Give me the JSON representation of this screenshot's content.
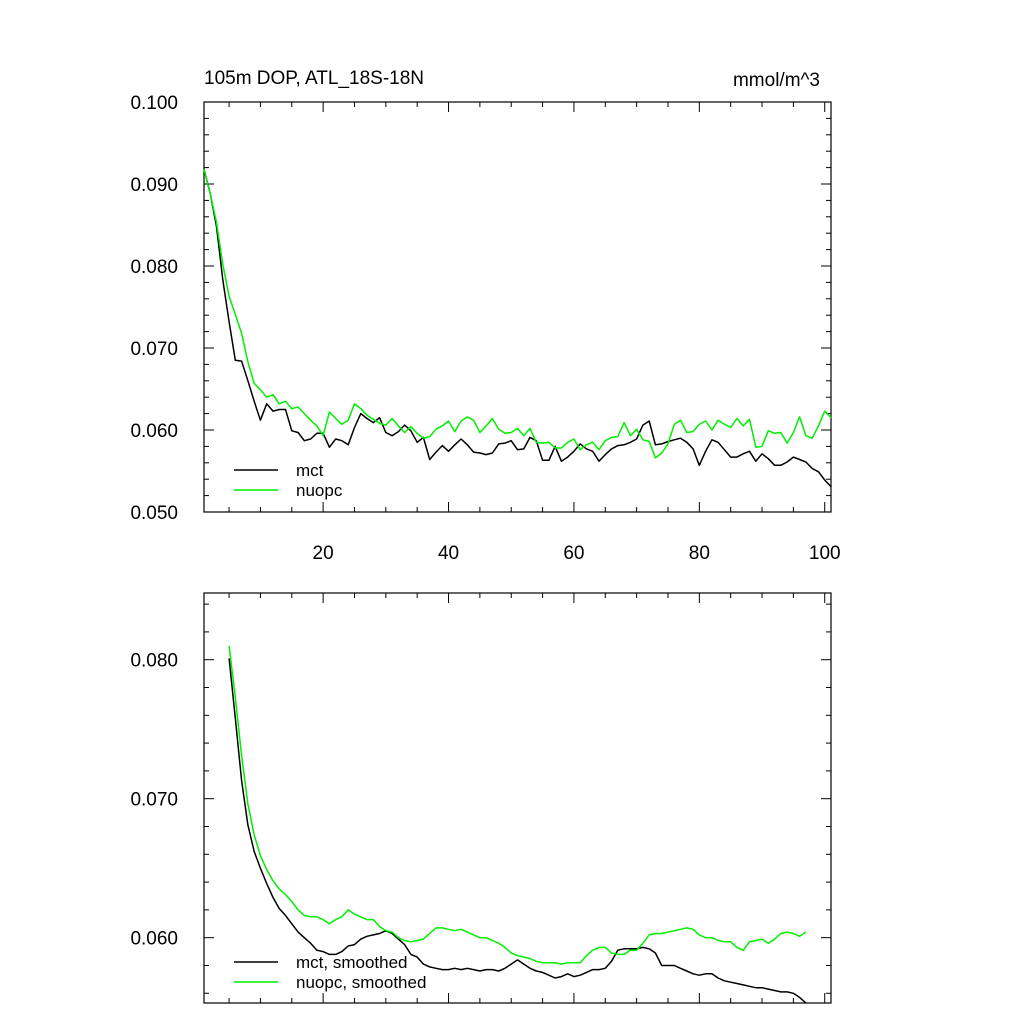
{
  "chart_data": [
    {
      "type": "line",
      "title": "105m DOP, ATL_18S-18N",
      "units": "mmol/m^3",
      "xlim": [
        1,
        101
      ],
      "ylim": [
        0.05,
        0.1
      ],
      "xticks": [
        20,
        40,
        60,
        80,
        100
      ],
      "xtick_labels": [
        "20",
        "40",
        "60",
        "80",
        "100"
      ],
      "yticks": [
        0.05,
        0.06,
        0.07,
        0.08,
        0.09,
        0.1
      ],
      "ytick_labels": [
        "0.050",
        "0.060",
        "0.070",
        "0.080",
        "0.090",
        "0.100"
      ],
      "legend_position": "bottom-left",
      "x": [
        1,
        2,
        3,
        4,
        5,
        6,
        7,
        8,
        9,
        10,
        11,
        12,
        13,
        14,
        15,
        16,
        17,
        18,
        19,
        20,
        21,
        22,
        23,
        24,
        25,
        26,
        27,
        28,
        29,
        30,
        31,
        32,
        33,
        34,
        35,
        36,
        37,
        38,
        39,
        40,
        41,
        42,
        43,
        44,
        45,
        46,
        47,
        48,
        49,
        50,
        51,
        52,
        53,
        54,
        55,
        56,
        57,
        58,
        59,
        60,
        61,
        62,
        63,
        64,
        65,
        66,
        67,
        68,
        69,
        70,
        71,
        72,
        73,
        74,
        75,
        76,
        77,
        78,
        79,
        80,
        81,
        82,
        83,
        84,
        85,
        86,
        87,
        88,
        89,
        90,
        91,
        92,
        93,
        94,
        95,
        96,
        97,
        98,
        99,
        100,
        101
      ],
      "series": [
        {
          "name": "mct",
          "color": "#000000",
          "values": [
            0.0918,
            0.0888,
            0.0848,
            0.0783,
            0.0732,
            0.0685,
            0.0684,
            0.066,
            0.0635,
            0.0612,
            0.0632,
            0.0623,
            0.0625,
            0.0625,
            0.0599,
            0.0597,
            0.0587,
            0.0589,
            0.0596,
            0.0596,
            0.0579,
            0.0589,
            0.0587,
            0.0582,
            0.0603,
            0.062,
            0.0614,
            0.0609,
            0.0615,
            0.0597,
            0.0593,
            0.0598,
            0.0606,
            0.0599,
            0.0585,
            0.0591,
            0.0564,
            0.0573,
            0.0581,
            0.0574,
            0.0582,
            0.0589,
            0.0582,
            0.0573,
            0.0572,
            0.057,
            0.0572,
            0.0583,
            0.0584,
            0.0587,
            0.0576,
            0.0577,
            0.0591,
            0.0587,
            0.0563,
            0.0563,
            0.058,
            0.0562,
            0.0567,
            0.0574,
            0.0583,
            0.0577,
            0.0574,
            0.0562,
            0.057,
            0.0577,
            0.0581,
            0.0582,
            0.0585,
            0.0589,
            0.0606,
            0.0611,
            0.0582,
            0.0583,
            0.0586,
            0.0588,
            0.059,
            0.0585,
            0.0577,
            0.0557,
            0.0574,
            0.0588,
            0.0585,
            0.0576,
            0.0567,
            0.0567,
            0.0571,
            0.0574,
            0.0562,
            0.0571,
            0.0565,
            0.0557,
            0.0557,
            0.0561,
            0.0567,
            0.0564,
            0.0561,
            0.0553,
            0.0549,
            0.0539,
            0.0531
          ]
        },
        {
          "name": "nuopc",
          "color": "#00ee00",
          "values": [
            0.0918,
            0.0888,
            0.0853,
            0.0802,
            0.0763,
            0.0741,
            0.0718,
            0.0683,
            0.0657,
            0.0649,
            0.064,
            0.0643,
            0.0632,
            0.0635,
            0.0626,
            0.0628,
            0.062,
            0.0612,
            0.0605,
            0.0593,
            0.0622,
            0.0614,
            0.0607,
            0.0612,
            0.0632,
            0.0626,
            0.0618,
            0.0613,
            0.0608,
            0.0606,
            0.0614,
            0.0605,
            0.0597,
            0.0604,
            0.0596,
            0.059,
            0.0592,
            0.0601,
            0.0605,
            0.0611,
            0.0598,
            0.0611,
            0.0616,
            0.0612,
            0.0597,
            0.0605,
            0.0614,
            0.0601,
            0.0596,
            0.0597,
            0.0602,
            0.0593,
            0.0602,
            0.0585,
            0.0584,
            0.0585,
            0.0578,
            0.0578,
            0.0585,
            0.0589,
            0.0576,
            0.0582,
            0.0585,
            0.0576,
            0.0587,
            0.0591,
            0.0592,
            0.0609,
            0.0593,
            0.0601,
            0.0588,
            0.0586,
            0.0566,
            0.0572,
            0.0583,
            0.0607,
            0.0612,
            0.0597,
            0.0598,
            0.0607,
            0.0611,
            0.06,
            0.0612,
            0.0607,
            0.0603,
            0.0614,
            0.0605,
            0.0613,
            0.0579,
            0.058,
            0.0599,
            0.0596,
            0.0597,
            0.0584,
            0.0597,
            0.0616,
            0.0593,
            0.059,
            0.0605,
            0.0623,
            0.0615
          ]
        }
      ]
    },
    {
      "type": "line",
      "title": "",
      "xlim": [
        1,
        101
      ],
      "ylim": [
        0.0553,
        0.0848
      ],
      "xticks": [
        20,
        40,
        60,
        80,
        100
      ],
      "xtick_labels": [],
      "yticks": [
        0.06,
        0.07,
        0.08
      ],
      "ytick_labels": [
        "0.060",
        "0.070",
        "0.080"
      ],
      "legend_position": "bottom-left",
      "x": [
        5,
        6,
        7,
        8,
        9,
        10,
        11,
        12,
        13,
        14,
        15,
        16,
        17,
        18,
        19,
        20,
        21,
        22,
        23,
        24,
        25,
        26,
        27,
        28,
        29,
        30,
        31,
        32,
        33,
        34,
        35,
        36,
        37,
        38,
        39,
        40,
        41,
        42,
        43,
        44,
        45,
        46,
        47,
        48,
        49,
        50,
        51,
        52,
        53,
        54,
        55,
        56,
        57,
        58,
        59,
        60,
        61,
        62,
        63,
        64,
        65,
        66,
        67,
        68,
        69,
        70,
        71,
        72,
        73,
        74,
        75,
        76,
        77,
        78,
        79,
        80,
        81,
        82,
        83,
        84,
        85,
        86,
        87,
        88,
        89,
        90,
        91,
        92,
        93,
        94,
        95,
        96,
        97
      ],
      "series": [
        {
          "name": "mct, smoothed",
          "color": "#000000",
          "values": [
            0.0801,
            0.0758,
            0.0713,
            0.0681,
            0.0662,
            0.065,
            0.0639,
            0.0629,
            0.0621,
            0.0616,
            0.061,
            0.0604,
            0.06,
            0.0596,
            0.0591,
            0.059,
            0.0588,
            0.0588,
            0.059,
            0.0594,
            0.0595,
            0.0599,
            0.0601,
            0.0602,
            0.0603,
            0.0605,
            0.0603,
            0.0599,
            0.0595,
            0.0588,
            0.0586,
            0.0581,
            0.0579,
            0.0578,
            0.0577,
            0.0577,
            0.0578,
            0.0577,
            0.0578,
            0.0577,
            0.0576,
            0.0577,
            0.0577,
            0.0576,
            0.0578,
            0.0581,
            0.0584,
            0.0581,
            0.0578,
            0.0576,
            0.0575,
            0.0573,
            0.0571,
            0.0572,
            0.0574,
            0.0572,
            0.0573,
            0.0575,
            0.0577,
            0.0577,
            0.0578,
            0.0583,
            0.0591,
            0.0592,
            0.0592,
            0.0592,
            0.0593,
            0.0592,
            0.0589,
            0.058,
            0.058,
            0.058,
            0.0578,
            0.0576,
            0.0574,
            0.0573,
            0.0574,
            0.0574,
            0.0571,
            0.0569,
            0.0568,
            0.0567,
            0.0566,
            0.0565,
            0.0564,
            0.0564,
            0.0563,
            0.0562,
            0.0561,
            0.0561,
            0.056,
            0.0557,
            0.0553
          ]
        },
        {
          "name": "nuopc, smoothed",
          "color": "#00ee00",
          "values": [
            0.081,
            0.0773,
            0.0731,
            0.0696,
            0.0674,
            0.0659,
            0.0649,
            0.0641,
            0.0635,
            0.0631,
            0.0626,
            0.062,
            0.0616,
            0.0615,
            0.0615,
            0.0613,
            0.061,
            0.0613,
            0.0615,
            0.062,
            0.0617,
            0.0615,
            0.0613,
            0.0613,
            0.0608,
            0.0605,
            0.0604,
            0.06,
            0.0598,
            0.0597,
            0.0598,
            0.0599,
            0.0603,
            0.0607,
            0.0607,
            0.0606,
            0.0605,
            0.0606,
            0.0604,
            0.0602,
            0.06,
            0.06,
            0.0598,
            0.0596,
            0.0593,
            0.0589,
            0.0587,
            0.0586,
            0.0585,
            0.0583,
            0.0582,
            0.0582,
            0.0582,
            0.0581,
            0.0582,
            0.0582,
            0.0582,
            0.0587,
            0.0591,
            0.0593,
            0.0593,
            0.0589,
            0.0588,
            0.0588,
            0.0591,
            0.0591,
            0.0596,
            0.0602,
            0.0603,
            0.0603,
            0.0604,
            0.0605,
            0.0606,
            0.0607,
            0.0606,
            0.0602,
            0.06,
            0.06,
            0.0598,
            0.0597,
            0.0597,
            0.0593,
            0.0591,
            0.0597,
            0.0598,
            0.0599,
            0.0596,
            0.0599,
            0.0603,
            0.0604,
            0.0603,
            0.0601,
            0.0604
          ]
        }
      ]
    }
  ]
}
